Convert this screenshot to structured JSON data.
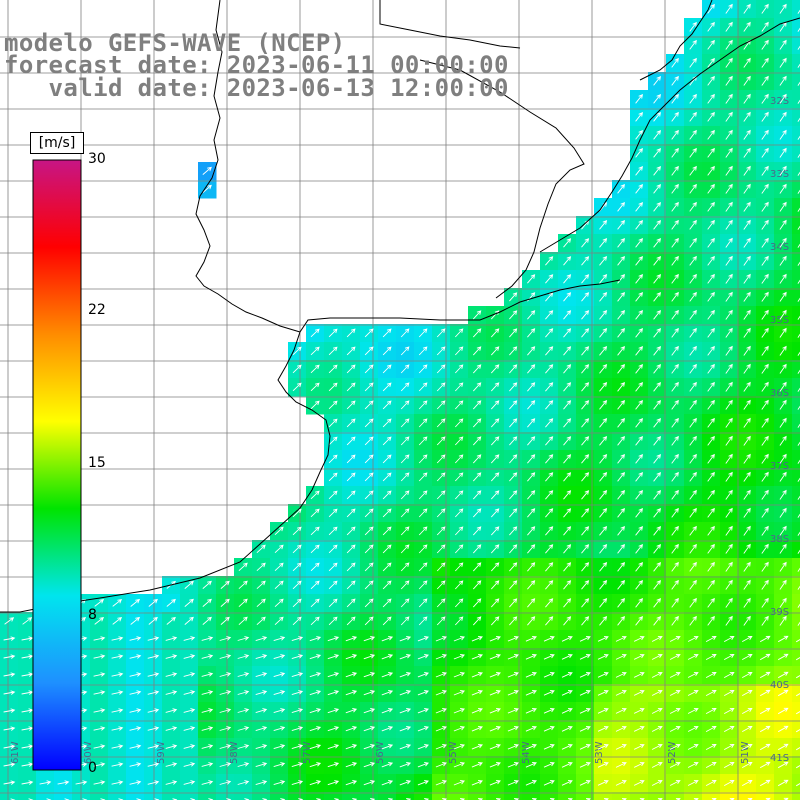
{
  "title": {
    "line1": "modelo GEFS-WAVE (NCEP)",
    "line2": "forecast date: 2023-06-11 00:00:00",
    "line3": "   valid date: 2023-06-13 12:00:00"
  },
  "colorbar": {
    "unit": "[m/s]",
    "ticks": [
      "30",
      "22",
      "15",
      "8",
      "0"
    ],
    "colors": [
      "#0000ff",
      "#1e90ff",
      "#00e5ee",
      "#00e400",
      "#ffff00",
      "#ff8c00",
      "#ff0000",
      "#c71585"
    ]
  },
  "grid": {
    "lat_labels": [
      "32S",
      "33S",
      "34S",
      "35S",
      "36S",
      "37S",
      "38S",
      "39S",
      "40S",
      "41S"
    ],
    "lon_labels": [
      "61W",
      "60W",
      "59W",
      "58W",
      "57W",
      "56W",
      "55W",
      "54W",
      "53W",
      "52W",
      "51W"
    ]
  },
  "map": {
    "land_color": "#ffffff",
    "coast_color": "#000000",
    "grid_color": "#7f7f7f",
    "arrow_color": "#ffffff",
    "direction": "winds from south-west"
  }
}
